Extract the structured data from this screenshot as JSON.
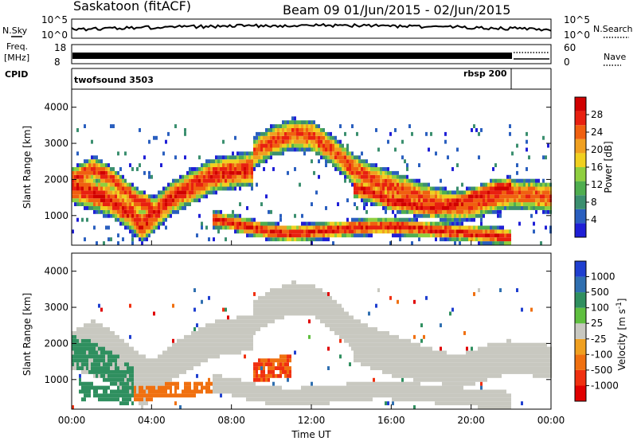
{
  "header": {
    "station": "Saskatoon (fitACF)",
    "beam_date": "Beam 09  01/Jun/2015 - 02/Jun/2015"
  },
  "side_labels": {
    "nsky": "N.Sky",
    "freq_line1": "Freq.",
    "freq_line2": "[MHz]",
    "cpid": "CPID",
    "nsearch": "N.Search",
    "nave": "Nave"
  },
  "noise_panel": {
    "left_ticks": [
      "10^5",
      "10^0"
    ],
    "right_ticks": [
      "10^5",
      "10^0"
    ]
  },
  "freq_panel": {
    "left_ticks": [
      "18",
      "8"
    ],
    "right_ticks": [
      "60",
      "0"
    ]
  },
  "cpid_panel": {
    "segments": [
      {
        "label": "twofsound 3503",
        "start_hour": 0,
        "end_hour": 22
      },
      {
        "label": "rbsp 200",
        "start_hour": 22,
        "end_hour": 24
      }
    ]
  },
  "colors": {
    "power_scale": [
      "#1f1fd6",
      "#2a5fbf",
      "#3b8f6f",
      "#4fae4f",
      "#8fcf3f",
      "#f0d020",
      "#f0a020",
      "#f06010",
      "#e82010",
      "#d00000"
    ],
    "velocity_scale": [
      "#1f3fd0",
      "#2f6fb0",
      "#2f8f5f",
      "#5fbf3f",
      "#c8c8c0",
      "#f0a020",
      "#f07010",
      "#f03010",
      "#e00000"
    ]
  },
  "chart_data": [
    {
      "type": "heatmap",
      "title": "",
      "quantity": "Power",
      "xlabel": "",
      "ylabel": "Slant Range [km]",
      "x_range_hours": [
        0,
        24
      ],
      "xticks": [
        "00:00",
        "04:00",
        "08:00",
        "12:00",
        "16:00",
        "20:00",
        "00:00"
      ],
      "ylim": [
        180,
        4500
      ],
      "yticks": [
        "1000",
        "2000",
        "3000",
        "4000"
      ],
      "colorbar": {
        "label": "Power [dB]",
        "ticks": [
          "4",
          "8",
          "12",
          "16",
          "20",
          "24",
          "28"
        ],
        "range": [
          0,
          30
        ]
      },
      "bands": [
        {
          "x": [
            0,
            1,
            2,
            3,
            3.5,
            4,
            5,
            6,
            7,
            8,
            9
          ],
          "center": [
            1800,
            1600,
            1400,
            1000,
            700,
            1000,
            1500,
            1800,
            2100,
            2200,
            2300
          ],
          "width": 500,
          "peak": 26
        },
        {
          "x": [
            0,
            1,
            2,
            3,
            4
          ],
          "center": [
            2000,
            2300,
            2000,
            1500,
            1200
          ],
          "width": 350,
          "peak": 25
        },
        {
          "x": [
            9,
            10,
            11,
            12,
            13,
            14,
            15,
            16,
            17,
            18,
            19,
            20,
            21,
            22,
            23,
            24
          ],
          "center": [
            2700,
            3050,
            3250,
            3200,
            2800,
            2300,
            2000,
            1800,
            1600,
            1400,
            1250,
            1300,
            1500,
            1600,
            1550,
            1500
          ],
          "width": 450,
          "peak": 24
        },
        {
          "x": [
            7,
            8,
            9,
            10,
            11,
            12,
            13,
            14,
            15,
            16,
            17,
            18,
            19,
            20,
            21,
            22
          ],
          "center": [
            900,
            800,
            650,
            550,
            500,
            550,
            600,
            650,
            700,
            700,
            650,
            600,
            550,
            500,
            450,
            400
          ],
          "width": 250,
          "peak": 26
        },
        {
          "x": [
            14,
            15,
            16,
            17,
            18,
            19,
            20,
            21,
            22
          ],
          "center": [
            1800,
            1600,
            1400,
            1300,
            1200,
            1300,
            1500,
            1700,
            1800
          ],
          "width": 300,
          "peak": 27
        }
      ]
    },
    {
      "type": "heatmap",
      "title": "",
      "quantity": "Velocity",
      "xlabel": "Time UT",
      "ylabel": "Slant Range [km]",
      "x_range_hours": [
        0,
        24
      ],
      "xticks": [
        "00:00",
        "04:00",
        "08:00",
        "12:00",
        "16:00",
        "20:00",
        "00:00"
      ],
      "ylim": [
        180,
        4500
      ],
      "yticks": [
        "1000",
        "2000",
        "3000",
        "4000"
      ],
      "colorbar": {
        "label": "Velocity [m s^-1]",
        "ticks": [
          "1000",
          "500",
          "100",
          "25",
          "-25",
          "-100",
          "-500",
          "-1000"
        ],
        "range": [
          -1200,
          1200
        ]
      },
      "features": [
        {
          "x": [
            0,
            1,
            2,
            3
          ],
          "center": [
            1800,
            1600,
            1300,
            900
          ],
          "width": 450,
          "value": 150
        },
        {
          "x": [
            0.3,
            1.5,
            3
          ],
          "center": [
            800,
            600,
            500
          ],
          "width": 200,
          "value": 90
        },
        {
          "x": [
            9,
            10,
            11
          ],
          "center": [
            1200,
            1300,
            1400
          ],
          "width": 300,
          "value": -300
        },
        {
          "x": [
            3,
            5,
            7
          ],
          "center": [
            600,
            700,
            800
          ],
          "width": 200,
          "value": -200
        }
      ]
    }
  ]
}
